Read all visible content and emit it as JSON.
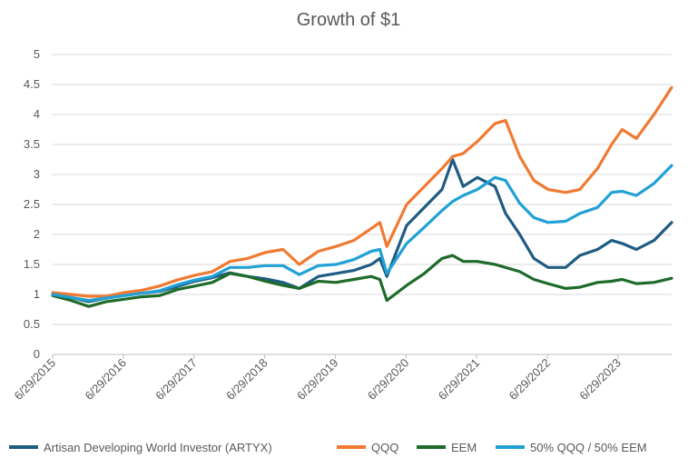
{
  "chart_data": {
    "type": "line",
    "title": "Growth of $1",
    "xlabel": "",
    "ylabel": "",
    "ylim": [
      0,
      5
    ],
    "yticks": [
      "0",
      "0.5",
      "1",
      "1.5",
      "2",
      "2.5",
      "3",
      "3.5",
      "4",
      "4.5",
      "5"
    ],
    "x_tick_labels": [
      "6/29/2015",
      "6/29/2016",
      "6/29/2017",
      "6/29/2018",
      "6/29/2019",
      "6/29/2020",
      "6/29/2021",
      "6/29/2022",
      "6/29/2023"
    ],
    "x_start_year": 2015.49,
    "x_end_year": 2024.25,
    "x": [
      2015.49,
      2015.75,
      2016.0,
      2016.25,
      2016.5,
      2016.75,
      2017.0,
      2017.25,
      2017.5,
      2017.75,
      2018.0,
      2018.25,
      2018.5,
      2018.75,
      2018.98,
      2019.25,
      2019.5,
      2019.75,
      2020.0,
      2020.12,
      2020.22,
      2020.5,
      2020.75,
      2021.0,
      2021.15,
      2021.3,
      2021.5,
      2021.75,
      2021.9,
      2022.1,
      2022.3,
      2022.5,
      2022.75,
      2022.95,
      2023.2,
      2023.4,
      2023.55,
      2023.75,
      2024.0,
      2024.25
    ],
    "series": [
      {
        "name": "Artisan Developing World Investor (ARTYX)",
        "color": "#1f5c82",
        "values": [
          1.0,
          0.95,
          0.88,
          0.94,
          0.98,
          1.02,
          1.05,
          1.13,
          1.22,
          1.28,
          1.36,
          1.3,
          1.26,
          1.2,
          1.1,
          1.3,
          1.35,
          1.4,
          1.5,
          1.6,
          1.3,
          2.15,
          2.45,
          2.75,
          3.25,
          2.8,
          2.95,
          2.8,
          2.35,
          2.0,
          1.6,
          1.45,
          1.45,
          1.65,
          1.75,
          1.9,
          1.85,
          1.75,
          1.9,
          2.2
        ]
      },
      {
        "name": "QQQ",
        "color": "#f07a32",
        "values": [
          1.03,
          1.0,
          0.97,
          0.97,
          1.03,
          1.07,
          1.14,
          1.24,
          1.32,
          1.38,
          1.55,
          1.6,
          1.7,
          1.75,
          1.5,
          1.72,
          1.8,
          1.9,
          2.1,
          2.2,
          1.8,
          2.5,
          2.8,
          3.1,
          3.3,
          3.35,
          3.55,
          3.85,
          3.9,
          3.3,
          2.9,
          2.75,
          2.7,
          2.75,
          3.1,
          3.5,
          3.75,
          3.6,
          4.0,
          4.45
        ]
      },
      {
        "name": "EEM",
        "color": "#1e6b2a",
        "values": [
          0.98,
          0.9,
          0.8,
          0.88,
          0.92,
          0.96,
          0.98,
          1.08,
          1.14,
          1.2,
          1.35,
          1.3,
          1.22,
          1.15,
          1.1,
          1.22,
          1.2,
          1.25,
          1.3,
          1.25,
          0.9,
          1.15,
          1.35,
          1.6,
          1.65,
          1.55,
          1.55,
          1.5,
          1.45,
          1.38,
          1.25,
          1.18,
          1.1,
          1.12,
          1.2,
          1.22,
          1.25,
          1.18,
          1.2,
          1.27
        ]
      },
      {
        "name": "50% QQQ / 50% EEM",
        "color": "#21a1d5",
        "values": [
          1.0,
          0.95,
          0.9,
          0.94,
          0.98,
          1.02,
          1.06,
          1.16,
          1.24,
          1.3,
          1.45,
          1.45,
          1.48,
          1.48,
          1.33,
          1.48,
          1.5,
          1.58,
          1.72,
          1.75,
          1.35,
          1.85,
          2.12,
          2.4,
          2.55,
          2.65,
          2.75,
          2.95,
          2.9,
          2.52,
          2.28,
          2.2,
          2.22,
          2.35,
          2.45,
          2.7,
          2.72,
          2.65,
          2.85,
          3.15
        ]
      }
    ],
    "legend_position": "bottom",
    "grid": true
  }
}
